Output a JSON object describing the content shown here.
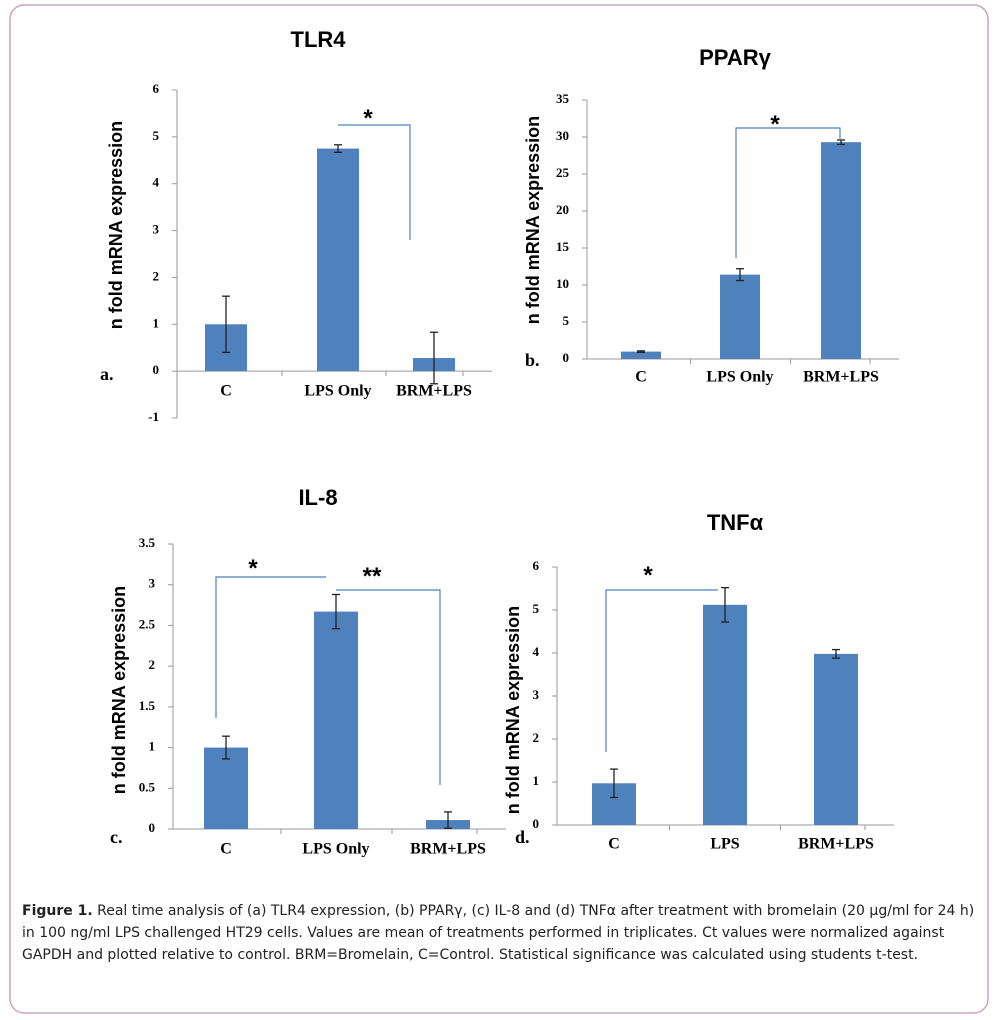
{
  "chart_data": [
    {
      "type": "bar",
      "title": "TLR4",
      "panel_label": "a.",
      "y_label": "n fold mRNA expression",
      "color": "#4f81bd",
      "categories": [
        "C",
        "LPS Only",
        "BRM+LPS"
      ],
      "values": [
        1.0,
        4.75,
        0.28
      ],
      "errors": [
        0.6,
        0.08,
        0.55
      ],
      "ylim": [
        -1,
        6
      ],
      "yticks": [
        -1,
        0,
        1,
        2,
        3,
        4,
        5,
        6
      ],
      "annotations": [
        "*"
      ]
    },
    {
      "type": "bar",
      "title": "PPARγ",
      "panel_label": "b.",
      "y_label": "n fold mRNA expression",
      "color": "#4f81bd",
      "categories": [
        "C",
        "LPS Only",
        "BRM+LPS"
      ],
      "values": [
        1.0,
        11.4,
        29.3
      ],
      "errors": [
        0.1,
        0.8,
        0.3
      ],
      "ylim": [
        0,
        35
      ],
      "yticks": [
        0,
        5,
        10,
        15,
        20,
        25,
        30,
        35
      ],
      "annotations": [
        "*"
      ]
    },
    {
      "type": "bar",
      "title": "IL-8",
      "panel_label": "c.",
      "y_label": "n fold mRNA expression",
      "color": "#4f81bd",
      "categories": [
        "C",
        "LPS Only",
        "BRM+LPS"
      ],
      "values": [
        1.0,
        2.67,
        0.11
      ],
      "errors": [
        0.14,
        0.21,
        0.1
      ],
      "ylim": [
        0,
        3.5
      ],
      "yticks": [
        0,
        0.5,
        1,
        1.5,
        2,
        2.5,
        3,
        3.5
      ],
      "annotations": [
        "*",
        "**"
      ]
    },
    {
      "type": "bar",
      "title": "TNFα",
      "panel_label": "d.",
      "y_label": "n fold mRNA expression",
      "color": "#4f81bd",
      "categories": [
        "C",
        "LPS",
        "BRM+LPS"
      ],
      "values": [
        0.97,
        5.12,
        3.98
      ],
      "errors": [
        0.33,
        0.4,
        0.1
      ],
      "ylim": [
        0,
        6
      ],
      "yticks": [
        0,
        1,
        2,
        3,
        4,
        5,
        6
      ],
      "annotations": [
        "*"
      ]
    }
  ],
  "caption": {
    "label": "Figure 1.",
    "text": "Real time analysis of (a) TLR4 expression, (b) PPARγ, (c) IL-8 and (d) TNFα after treatment with bromelain (20 µg/ml for 24 h) in 100 ng/ml LPS challenged HT29 cells. Values are mean of treatments performed in triplicates. Ct values were normalized against GAPDH and plotted relative to control. BRM=Bromelain, C=Control. Statistical significance was calculated using students t-test."
  }
}
